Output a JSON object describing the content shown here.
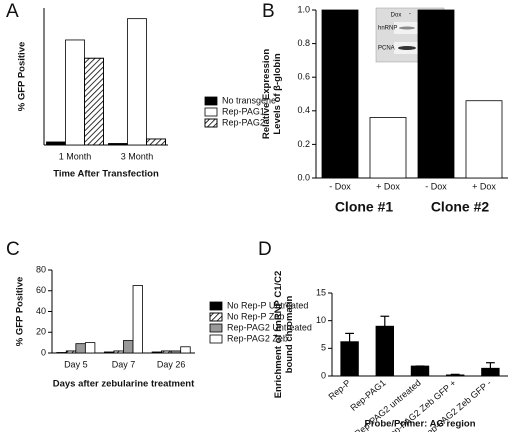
{
  "chart_data": [
    {
      "panel_label": "A",
      "type": "bar",
      "y_label": [
        "% GFP Positive"
      ],
      "x_label": "Time After Transfection",
      "categories": [
        "1 Month",
        "3 Month"
      ],
      "series": [
        {
          "name": "No transgene",
          "color": "#000000",
          "values": [
            2,
            1
          ]
        },
        {
          "name": "Rep-PAG1",
          "color": "#ffffff",
          "values": [
            69,
            83
          ]
        },
        {
          "name": "Rep-PAG2",
          "color": "#ffffff",
          "hatch": true,
          "values": [
            57,
            4
          ]
        }
      ],
      "ylim": [
        0,
        90
      ],
      "legend": "right"
    },
    {
      "panel_label": "B",
      "type": "bar",
      "y_label": [
        "Relative Expression",
        "Levels of β-globin"
      ],
      "categories": [
        "- Dox",
        "+ Dox",
        "- Dox",
        "+ Dox"
      ],
      "group_labels": [
        "Clone #1",
        "Clone #2"
      ],
      "values": [
        1,
        0.36,
        1,
        0.46
      ],
      "colors": [
        "#000000",
        "#ffffff",
        "#000000",
        "#ffffff"
      ],
      "ylim": [
        0,
        1
      ],
      "yticks": [
        {
          "value": 0,
          "label": "0.0"
        },
        0.2,
        0.4,
        0.6,
        0.8,
        {
          "value": 1,
          "label": "1.0"
        }
      ],
      "inset": {
        "header": "Dox",
        "minus": "-",
        "plus": "+",
        "rows": [
          "hnRNP",
          "PCNA"
        ]
      }
    },
    {
      "panel_label": "C",
      "type": "bar",
      "y_label": [
        "% GFP Positive"
      ],
      "x_label": "Days after zebularine treatment",
      "categories": [
        "Day 5",
        "Day 7",
        "Day 26"
      ],
      "series": [
        {
          "name": "No Rep-P Untreated",
          "color": "#000000",
          "values": [
            0.5,
            1,
            1
          ]
        },
        {
          "name": "No Rep-P Zeb",
          "color": "#ffffff",
          "hatch": true,
          "values": [
            2,
            2,
            2
          ]
        },
        {
          "name": "Rep-PAG2 Untreated",
          "color": "#999999",
          "values": [
            9,
            12,
            2
          ]
        },
        {
          "name": "Rep-PAG2 Zeb",
          "color": "#ffffff",
          "values": [
            10,
            65,
            6
          ]
        }
      ],
      "ylim": [
        0,
        80
      ],
      "yticks": [
        0,
        20,
        40,
        60,
        80
      ],
      "legend": "right"
    },
    {
      "panel_label": "D",
      "type": "bar",
      "y_label": [
        "Enrichment of hnRNP C1/C2",
        "bound chromatin"
      ],
      "x_label": "Probe/Primer: AG region",
      "categories": [
        "Rep-P",
        "Rep-PAG1",
        "Rep-PAG2 untreated",
        "Rep-PAG2 Zeb GFP +",
        "Rep-PAG2 Zeb GFP -"
      ],
      "values": [
        6.2,
        9.0,
        1.8,
        0.2,
        1.4
      ],
      "errors": [
        1.5,
        1.8,
        0,
        0.1,
        1.0
      ],
      "color": "#000000",
      "ylim": [
        0,
        15
      ],
      "yticks": [
        0,
        5,
        10,
        15
      ]
    }
  ]
}
